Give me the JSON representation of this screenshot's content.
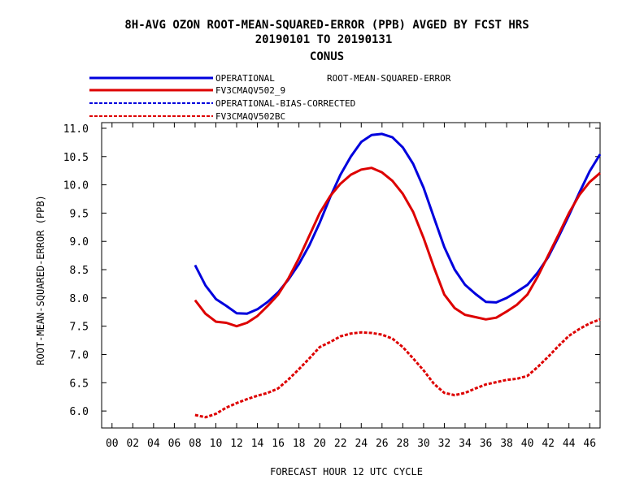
{
  "chart_data": {
    "type": "line",
    "title_lines": [
      "8H-AVG OZON ROOT-MEAN-SQUARED-ERROR (PPB)  AVGED BY FCST HRS",
      "20190101 TO 20190131",
      "CONUS"
    ],
    "xlabel": "FORECAST HOUR  12 UTC CYCLE",
    "ylabel": "ROOT-MEAN-SQUARED-ERROR (PPB)",
    "legend_note": "ROOT-MEAN-SQUARED-ERROR",
    "legend_placement": "top-left",
    "grid": false,
    "xlim": [
      -1,
      47
    ],
    "ylim": [
      5.7,
      11.1
    ],
    "x_ticks": [
      "00",
      "02",
      "04",
      "06",
      "08",
      "10",
      "12",
      "14",
      "16",
      "18",
      "20",
      "22",
      "24",
      "26",
      "28",
      "30",
      "32",
      "34",
      "36",
      "38",
      "40",
      "42",
      "44",
      "46"
    ],
    "y_ticks": [
      "6.0",
      "6.5",
      "7.0",
      "7.5",
      "8.0",
      "8.5",
      "9.0",
      "9.5",
      "10.0",
      "10.5",
      "11.0"
    ],
    "series": [
      {
        "name": "OPERATIONAL",
        "color": "#0000dd",
        "style": "solid",
        "x": [
          8,
          9,
          10,
          11,
          12,
          13,
          14,
          15,
          16,
          17,
          18,
          19,
          20,
          21,
          22,
          23,
          24,
          25,
          26,
          27,
          28,
          29,
          30,
          31,
          32,
          33,
          34,
          35,
          36,
          37,
          38,
          39,
          40,
          41,
          42,
          43,
          44,
          45,
          46,
          47
        ],
        "y": [
          8.58,
          8.22,
          7.98,
          7.86,
          7.73,
          7.72,
          7.8,
          7.93,
          8.1,
          8.33,
          8.6,
          8.93,
          9.33,
          9.78,
          10.18,
          10.5,
          10.76,
          10.88,
          10.9,
          10.84,
          10.66,
          10.37,
          9.95,
          9.42,
          8.9,
          8.5,
          8.23,
          8.07,
          7.93,
          7.92,
          8.0,
          8.11,
          8.23,
          8.45,
          8.72,
          9.08,
          9.46,
          9.86,
          10.24,
          10.54
        ]
      },
      {
        "name": "FV3CMAQV502_9",
        "color": "#dd0000",
        "style": "solid",
        "x": [
          8,
          9,
          10,
          11,
          12,
          13,
          14,
          15,
          16,
          17,
          18,
          19,
          20,
          21,
          22,
          23,
          24,
          25,
          26,
          27,
          28,
          29,
          30,
          31,
          32,
          33,
          34,
          35,
          36,
          37,
          38,
          39,
          40,
          41,
          42,
          43,
          44,
          45,
          46,
          47
        ],
        "y": [
          7.96,
          7.72,
          7.58,
          7.56,
          7.5,
          7.56,
          7.68,
          7.86,
          8.06,
          8.35,
          8.7,
          9.1,
          9.5,
          9.8,
          10.02,
          10.18,
          10.27,
          10.3,
          10.22,
          10.07,
          9.84,
          9.52,
          9.06,
          8.54,
          8.06,
          7.82,
          7.7,
          7.66,
          7.62,
          7.65,
          7.76,
          7.88,
          8.06,
          8.38,
          8.75,
          9.12,
          9.5,
          9.82,
          10.05,
          10.21
        ]
      },
      {
        "name": "OPERATIONAL-BIAS-CORRECTED",
        "color": "#0000dd",
        "style": "dashed",
        "x": [],
        "y": []
      },
      {
        "name": "FV3CMAQV502BC",
        "color": "#dd0000",
        "style": "dashed",
        "x": [
          8,
          9,
          10,
          11,
          12,
          13,
          14,
          15,
          16,
          17,
          18,
          19,
          20,
          21,
          22,
          23,
          24,
          25,
          26,
          27,
          28,
          29,
          30,
          31,
          32,
          33,
          34,
          35,
          36,
          37,
          38,
          39,
          40,
          41,
          42,
          43,
          44,
          45,
          46,
          47
        ],
        "y": [
          5.93,
          5.89,
          5.95,
          6.06,
          6.14,
          6.21,
          6.27,
          6.32,
          6.4,
          6.56,
          6.74,
          6.93,
          7.13,
          7.22,
          7.32,
          7.37,
          7.39,
          7.38,
          7.35,
          7.28,
          7.13,
          6.93,
          6.72,
          6.48,
          6.32,
          6.28,
          6.32,
          6.4,
          6.47,
          6.51,
          6.55,
          6.57,
          6.62,
          6.78,
          6.96,
          7.15,
          7.33,
          7.45,
          7.55,
          7.62
        ]
      }
    ]
  }
}
